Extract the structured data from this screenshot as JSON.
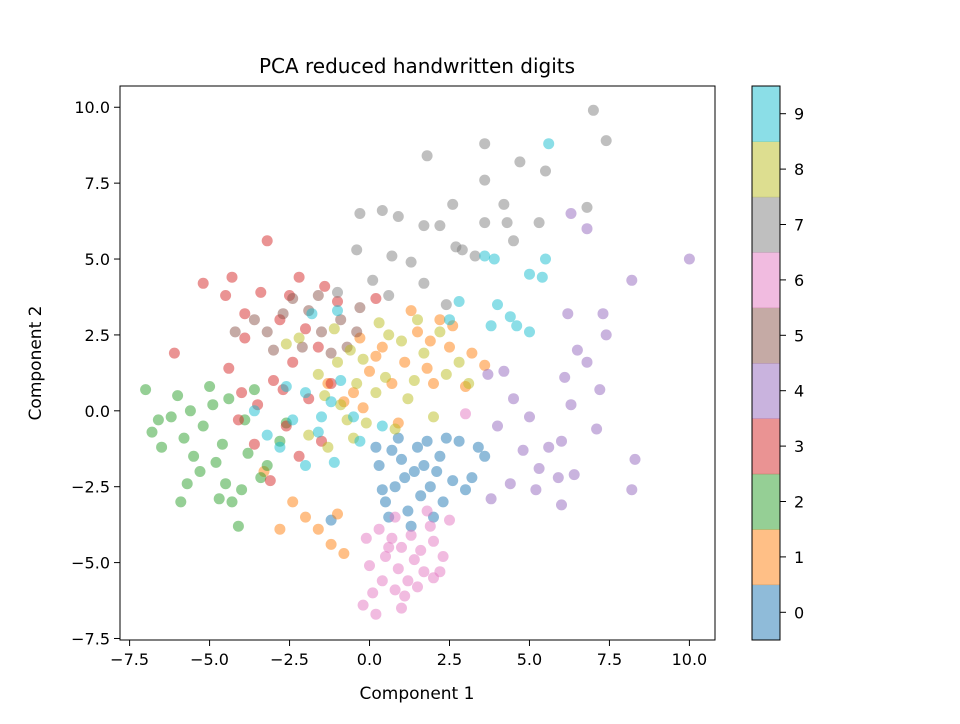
{
  "chart_data": {
    "type": "scatter",
    "title": "PCA reduced handwritten digits",
    "xlabel": "Component 1",
    "ylabel": "Component 2",
    "xlim": [
      -7.8,
      10.8
    ],
    "ylim": [
      -7.55,
      10.7
    ],
    "x_ticks": [
      -7.5,
      -5.0,
      -2.5,
      0.0,
      2.5,
      5.0,
      7.5,
      10.0
    ],
    "x_tick_labels": [
      "−7.5",
      "−5.0",
      "−2.5",
      "0.0",
      "2.5",
      "5.0",
      "7.5",
      "10.0"
    ],
    "y_ticks": [
      -7.5,
      -5.0,
      -2.5,
      0.0,
      2.5,
      5.0,
      7.5,
      10.0
    ],
    "y_tick_labels": [
      "−7.5",
      "−5.0",
      "−2.5",
      "0.0",
      "2.5",
      "5.0",
      "7.5",
      "10.0"
    ],
    "grid": false,
    "point_alpha": 0.5,
    "colorbar": {
      "labels": [
        "0",
        "1",
        "2",
        "3",
        "4",
        "5",
        "6",
        "7",
        "8",
        "9"
      ],
      "colors": [
        "#1f77b4",
        "#ff7f0e",
        "#2ca02c",
        "#d62728",
        "#9467bd",
        "#8c564b",
        "#e377c2",
        "#7f7f7f",
        "#bcbd22",
        "#17becf"
      ],
      "alpha": 0.5
    },
    "series": [
      {
        "label": "0",
        "color": "#1f77b4",
        "points": [
          [
            1.0,
            -1.6
          ],
          [
            1.4,
            -2.0
          ],
          [
            0.8,
            -2.5
          ],
          [
            1.8,
            -1.0
          ],
          [
            2.2,
            -1.5
          ],
          [
            0.5,
            -3.0
          ],
          [
            1.2,
            -3.3
          ],
          [
            0.3,
            -1.8
          ],
          [
            2.6,
            -2.3
          ],
          [
            3.2,
            -2.2
          ],
          [
            0.9,
            -0.9
          ],
          [
            1.6,
            -2.8
          ],
          [
            2.0,
            -3.5
          ],
          [
            3.6,
            -1.5
          ],
          [
            1.1,
            -2.2
          ],
          [
            0.7,
            -1.3
          ],
          [
            2.4,
            -0.9
          ],
          [
            1.9,
            -2.5
          ],
          [
            0.4,
            -2.6
          ],
          [
            1.5,
            -1.2
          ],
          [
            2.8,
            -1.0
          ],
          [
            0.6,
            -3.5
          ],
          [
            -1.2,
            -3.6
          ],
          [
            3.0,
            -2.6
          ],
          [
            1.3,
            -3.8
          ],
          [
            2.3,
            -3.0
          ],
          [
            1.7,
            -1.8
          ],
          [
            0.2,
            -1.2
          ],
          [
            3.4,
            -1.2
          ],
          [
            2.1,
            -2.0
          ]
        ]
      },
      {
        "label": "1",
        "color": "#ff7f0e",
        "points": [
          [
            0.0,
            1.3
          ],
          [
            -0.5,
            0.6
          ],
          [
            0.4,
            2.1
          ],
          [
            1.8,
            1.4
          ],
          [
            2.0,
            0.9
          ],
          [
            -0.8,
            0.3
          ],
          [
            0.9,
            -0.4
          ],
          [
            0.2,
            1.8
          ],
          [
            2.5,
            2.1
          ],
          [
            -2.4,
            -3.0
          ],
          [
            -2.0,
            -3.5
          ],
          [
            -1.6,
            -3.9
          ],
          [
            -2.8,
            -3.9
          ],
          [
            -1.2,
            -4.4
          ],
          [
            -0.8,
            -4.7
          ],
          [
            3.2,
            1.9
          ],
          [
            3.0,
            0.8
          ],
          [
            2.6,
            2.8
          ],
          [
            1.5,
            2.6
          ],
          [
            2.2,
            3.0
          ],
          [
            -0.3,
            2.4
          ],
          [
            1.1,
            1.6
          ],
          [
            -1.3,
            0.9
          ],
          [
            -3.3,
            -2.0
          ],
          [
            -1.0,
            -3.4
          ],
          [
            3.6,
            1.5
          ],
          [
            1.3,
            3.3
          ],
          [
            0.7,
            0.9
          ],
          [
            -0.2,
            0.1
          ],
          [
            1.9,
            2.3
          ]
        ]
      },
      {
        "label": "2",
        "color": "#2ca02c",
        "points": [
          [
            -7.0,
            0.7
          ],
          [
            -6.8,
            -0.7
          ],
          [
            -6.5,
            -1.2
          ],
          [
            -6.0,
            0.5
          ],
          [
            -5.8,
            -0.9
          ],
          [
            -5.5,
            -1.5
          ],
          [
            -5.2,
            -0.5
          ],
          [
            -5.0,
            0.8
          ],
          [
            -4.8,
            -1.7
          ],
          [
            -4.5,
            -2.4
          ],
          [
            -4.3,
            -3.0
          ],
          [
            -4.1,
            -3.8
          ],
          [
            -3.9,
            -0.3
          ],
          [
            -3.6,
            0.7
          ],
          [
            -3.2,
            -1.8
          ],
          [
            -6.2,
            -0.2
          ],
          [
            -5.7,
            -2.4
          ],
          [
            -5.9,
            -3.0
          ],
          [
            -4.9,
            0.2
          ],
          [
            -4.6,
            -1.1
          ],
          [
            -4.0,
            -2.6
          ],
          [
            -3.4,
            -2.2
          ],
          [
            -2.8,
            -1.0
          ],
          [
            -5.3,
            -2.0
          ],
          [
            -6.6,
            -0.3
          ],
          [
            -4.4,
            0.4
          ],
          [
            -3.8,
            -1.4
          ],
          [
            -2.6,
            -0.4
          ],
          [
            -5.6,
            0.0
          ],
          [
            -4.7,
            -2.9
          ]
        ]
      },
      {
        "label": "3",
        "color": "#d62728",
        "points": [
          [
            -3.2,
            5.6
          ],
          [
            -4.3,
            4.4
          ],
          [
            -3.4,
            3.9
          ],
          [
            -2.2,
            4.4
          ],
          [
            -1.4,
            4.1
          ],
          [
            -4.5,
            3.8
          ],
          [
            -5.2,
            4.2
          ],
          [
            -6.1,
            1.9
          ],
          [
            -3.9,
            2.4
          ],
          [
            -2.8,
            3.0
          ],
          [
            -1.6,
            2.1
          ],
          [
            -2.4,
            1.6
          ],
          [
            -3.0,
            1.0
          ],
          [
            -4.0,
            0.6
          ],
          [
            -3.5,
            0.2
          ],
          [
            -2.6,
            -0.5
          ],
          [
            -2.2,
            -1.5
          ],
          [
            -3.6,
            -1.1
          ],
          [
            -4.1,
            -0.3
          ],
          [
            -1.9,
            0.4
          ],
          [
            -1.2,
            0.9
          ],
          [
            -2.0,
            2.7
          ],
          [
            -1.0,
            3.6
          ],
          [
            0.2,
            3.7
          ],
          [
            -3.9,
            3.2
          ],
          [
            -2.5,
            3.8
          ],
          [
            -4.4,
            1.4
          ],
          [
            -2.7,
            0.7
          ],
          [
            -1.5,
            -1.0
          ],
          [
            -3.1,
            -2.3
          ]
        ]
      },
      {
        "label": "4",
        "color": "#9467bd",
        "points": [
          [
            10.0,
            5.0
          ],
          [
            8.2,
            4.3
          ],
          [
            6.3,
            6.5
          ],
          [
            6.8,
            6.0
          ],
          [
            7.3,
            3.2
          ],
          [
            7.4,
            2.5
          ],
          [
            6.2,
            3.2
          ],
          [
            6.5,
            2.0
          ],
          [
            6.8,
            1.6
          ],
          [
            6.1,
            1.1
          ],
          [
            7.2,
            0.7
          ],
          [
            6.3,
            0.2
          ],
          [
            7.1,
            -0.6
          ],
          [
            6.0,
            -1.0
          ],
          [
            5.6,
            -1.2
          ],
          [
            5.0,
            -0.2
          ],
          [
            4.5,
            0.4
          ],
          [
            4.2,
            1.3
          ],
          [
            3.7,
            1.2
          ],
          [
            4.0,
            -0.5
          ],
          [
            4.8,
            -1.3
          ],
          [
            5.3,
            -1.9
          ],
          [
            4.4,
            -2.4
          ],
          [
            5.9,
            -2.2
          ],
          [
            8.3,
            -1.6
          ],
          [
            8.2,
            -2.6
          ],
          [
            6.4,
            -2.1
          ],
          [
            5.2,
            -2.6
          ],
          [
            6.0,
            -3.1
          ],
          [
            3.8,
            -2.9
          ]
        ]
      },
      {
        "label": "5",
        "color": "#8c564b",
        "points": [
          [
            -2.4,
            3.7
          ],
          [
            -1.9,
            3.3
          ],
          [
            -1.5,
            2.6
          ],
          [
            -0.9,
            3.0
          ],
          [
            -0.4,
            2.6
          ],
          [
            -1.2,
            1.9
          ],
          [
            -2.1,
            2.1
          ],
          [
            -3.2,
            2.6
          ],
          [
            -2.7,
            3.2
          ],
          [
            -3.6,
            3.0
          ],
          [
            -4.2,
            2.6
          ],
          [
            -0.3,
            3.4
          ],
          [
            -1.6,
            3.8
          ],
          [
            -3.0,
            2.0
          ],
          [
            -0.7,
            2.1
          ]
        ]
      },
      {
        "label": "6",
        "color": "#e377c2",
        "points": [
          [
            0.3,
            -3.9
          ],
          [
            0.7,
            -4.2
          ],
          [
            1.0,
            -4.5
          ],
          [
            1.3,
            -4.1
          ],
          [
            1.6,
            -4.6
          ],
          [
            2.0,
            -4.3
          ],
          [
            0.5,
            -4.8
          ],
          [
            0.9,
            -5.2
          ],
          [
            1.2,
            -5.6
          ],
          [
            0.4,
            -5.6
          ],
          [
            0.1,
            -6.0
          ],
          [
            -0.2,
            -6.4
          ],
          [
            0.2,
            -6.7
          ],
          [
            0.8,
            -5.9
          ],
          [
            1.1,
            -6.1
          ],
          [
            1.7,
            -5.3
          ],
          [
            2.3,
            -4.8
          ],
          [
            2.5,
            -3.6
          ],
          [
            1.9,
            -3.8
          ],
          [
            0.6,
            -4.5
          ],
          [
            -0.1,
            -4.2
          ],
          [
            2.2,
            -5.3
          ],
          [
            1.4,
            -4.9
          ],
          [
            0.0,
            -5.1
          ],
          [
            1.8,
            -3.3
          ],
          [
            0.8,
            -3.5
          ],
          [
            2.0,
            -5.5
          ],
          [
            1.5,
            -5.8
          ],
          [
            1.0,
            -6.5
          ],
          [
            3.0,
            -0.1
          ]
        ]
      },
      {
        "label": "7",
        "color": "#7f7f7f",
        "points": [
          [
            1.8,
            8.4
          ],
          [
            3.6,
            8.8
          ],
          [
            4.7,
            8.2
          ],
          [
            5.5,
            7.9
          ],
          [
            7.0,
            9.9
          ],
          [
            7.4,
            8.9
          ],
          [
            3.6,
            7.6
          ],
          [
            4.2,
            6.8
          ],
          [
            -0.3,
            6.5
          ],
          [
            0.4,
            6.6
          ],
          [
            0.9,
            6.4
          ],
          [
            3.6,
            6.2
          ],
          [
            4.3,
            6.2
          ],
          [
            5.3,
            6.2
          ],
          [
            6.8,
            6.7
          ],
          [
            2.6,
            6.8
          ],
          [
            1.7,
            6.1
          ],
          [
            2.2,
            6.1
          ],
          [
            4.5,
            5.6
          ],
          [
            2.7,
            5.4
          ],
          [
            2.9,
            5.3
          ],
          [
            3.3,
            5.1
          ],
          [
            -0.4,
            5.3
          ],
          [
            0.7,
            5.1
          ],
          [
            1.3,
            4.9
          ],
          [
            0.1,
            4.3
          ],
          [
            -1.0,
            3.9
          ],
          [
            0.6,
            3.8
          ],
          [
            1.7,
            4.2
          ],
          [
            2.4,
            3.5
          ]
        ]
      },
      {
        "label": "8",
        "color": "#bcbd22",
        "points": [
          [
            -1.0,
            1.6
          ],
          [
            -0.6,
            2.0
          ],
          [
            0.5,
            1.1
          ],
          [
            1.2,
            0.4
          ],
          [
            -0.4,
            0.9
          ],
          [
            -1.4,
            0.5
          ],
          [
            2.4,
            1.2
          ],
          [
            1.7,
            1.9
          ],
          [
            0.2,
            0.6
          ],
          [
            -0.7,
            -0.3
          ],
          [
            2.0,
            -0.2
          ],
          [
            -1.6,
            1.2
          ],
          [
            1.4,
            1.0
          ],
          [
            -0.2,
            1.7
          ],
          [
            0.8,
            -0.6
          ],
          [
            -1.9,
            -0.8
          ],
          [
            2.8,
            1.6
          ],
          [
            -0.9,
            0.2
          ],
          [
            1.0,
            2.3
          ],
          [
            -2.2,
            2.4
          ],
          [
            -1.3,
            -1.2
          ],
          [
            0.6,
            2.5
          ],
          [
            3.1,
            0.9
          ],
          [
            -0.5,
            -0.9
          ],
          [
            1.5,
            3.0
          ],
          [
            0.3,
            2.9
          ],
          [
            -2.6,
            2.2
          ],
          [
            2.2,
            2.6
          ],
          [
            -1.1,
            2.7
          ],
          [
            -0.1,
            -0.4
          ]
        ]
      },
      {
        "label": "9",
        "color": "#17becf",
        "points": [
          [
            5.6,
            8.8
          ],
          [
            3.6,
            5.1
          ],
          [
            3.9,
            5.0
          ],
          [
            5.0,
            4.5
          ],
          [
            5.4,
            4.4
          ],
          [
            5.5,
            5.0
          ],
          [
            4.0,
            3.5
          ],
          [
            4.4,
            3.1
          ],
          [
            5.0,
            2.6
          ],
          [
            4.6,
            2.8
          ],
          [
            3.8,
            2.8
          ],
          [
            2.8,
            3.6
          ],
          [
            2.5,
            3.0
          ],
          [
            -1.0,
            3.3
          ],
          [
            -1.8,
            3.2
          ],
          [
            -2.0,
            0.6
          ],
          [
            -2.4,
            -0.3
          ],
          [
            -1.6,
            -0.7
          ],
          [
            -1.2,
            0.3
          ],
          [
            -0.5,
            -0.2
          ],
          [
            -3.2,
            -0.8
          ],
          [
            -2.8,
            -1.2
          ],
          [
            -3.6,
            0.0
          ],
          [
            -2.0,
            -1.8
          ],
          [
            -1.1,
            -1.7
          ],
          [
            -0.3,
            -1.0
          ],
          [
            0.4,
            -0.5
          ],
          [
            -0.9,
            1.0
          ],
          [
            -1.5,
            -0.2
          ],
          [
            -2.6,
            0.8
          ]
        ]
      }
    ]
  }
}
